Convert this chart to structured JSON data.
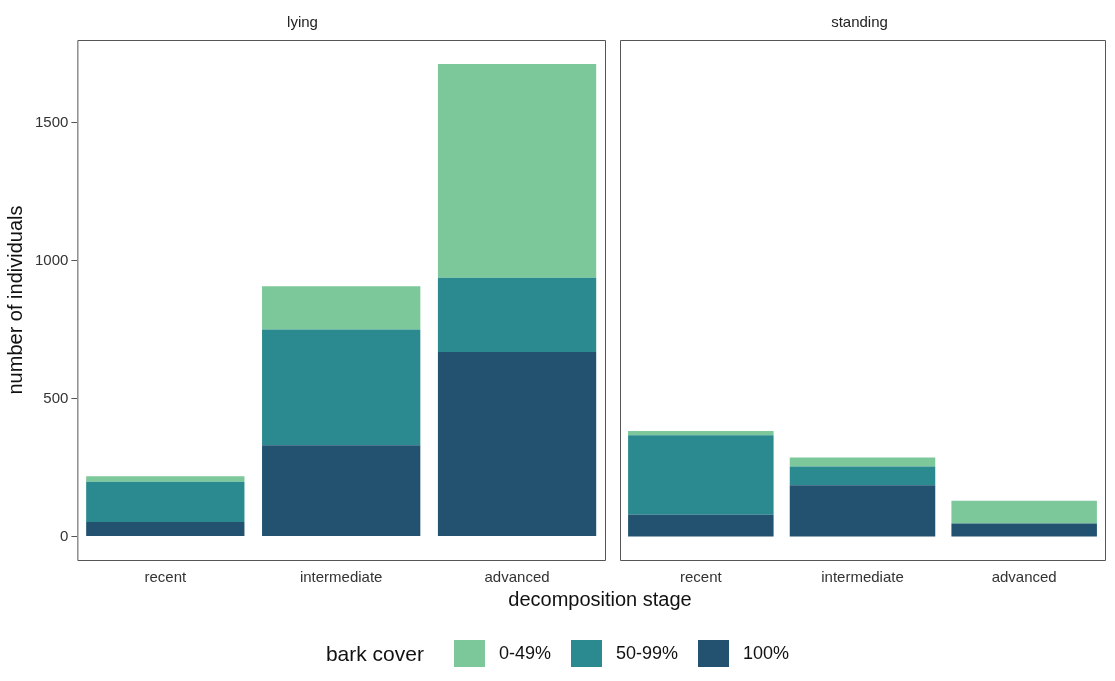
{
  "chart_data": [
    {
      "type": "bar",
      "title": "lying",
      "xlabel": "decomposition stage",
      "ylabel": "number of individuals",
      "legend_title": "bark cover",
      "legend": "bottom",
      "stacked": true,
      "categories": [
        "recent",
        "intermediate",
        "advanced"
      ],
      "ylim": [
        -85,
        1800
      ],
      "yticks": [
        0,
        500,
        1000,
        1500
      ],
      "grid": false,
      "series": [
        {
          "name": "100%",
          "color": "#22526f",
          "values": [
            53,
            331,
            669
          ]
        },
        {
          "name": "50-99%",
          "color": "#2b8a8f",
          "values": [
            146,
            420,
            269
          ]
        },
        {
          "name": "0-49%",
          "color": "#7cc89a",
          "values": [
            20,
            156,
            775
          ]
        }
      ]
    },
    {
      "type": "bar",
      "title": "standing",
      "stacked": true,
      "categories": [
        "recent",
        "intermediate",
        "advanced"
      ],
      "ylim": [
        -85,
        1800
      ],
      "tick_labels": "x",
      "grid": false,
      "series": [
        {
          "color": "#22526f",
          "values": [
            79,
            186,
            47
          ]
        },
        {
          "color": "#2b8a8f",
          "values": [
            288,
            68,
            0
          ]
        },
        {
          "color": "#7cc89a",
          "values": [
            16,
            33,
            83
          ]
        }
      ]
    }
  ]
}
